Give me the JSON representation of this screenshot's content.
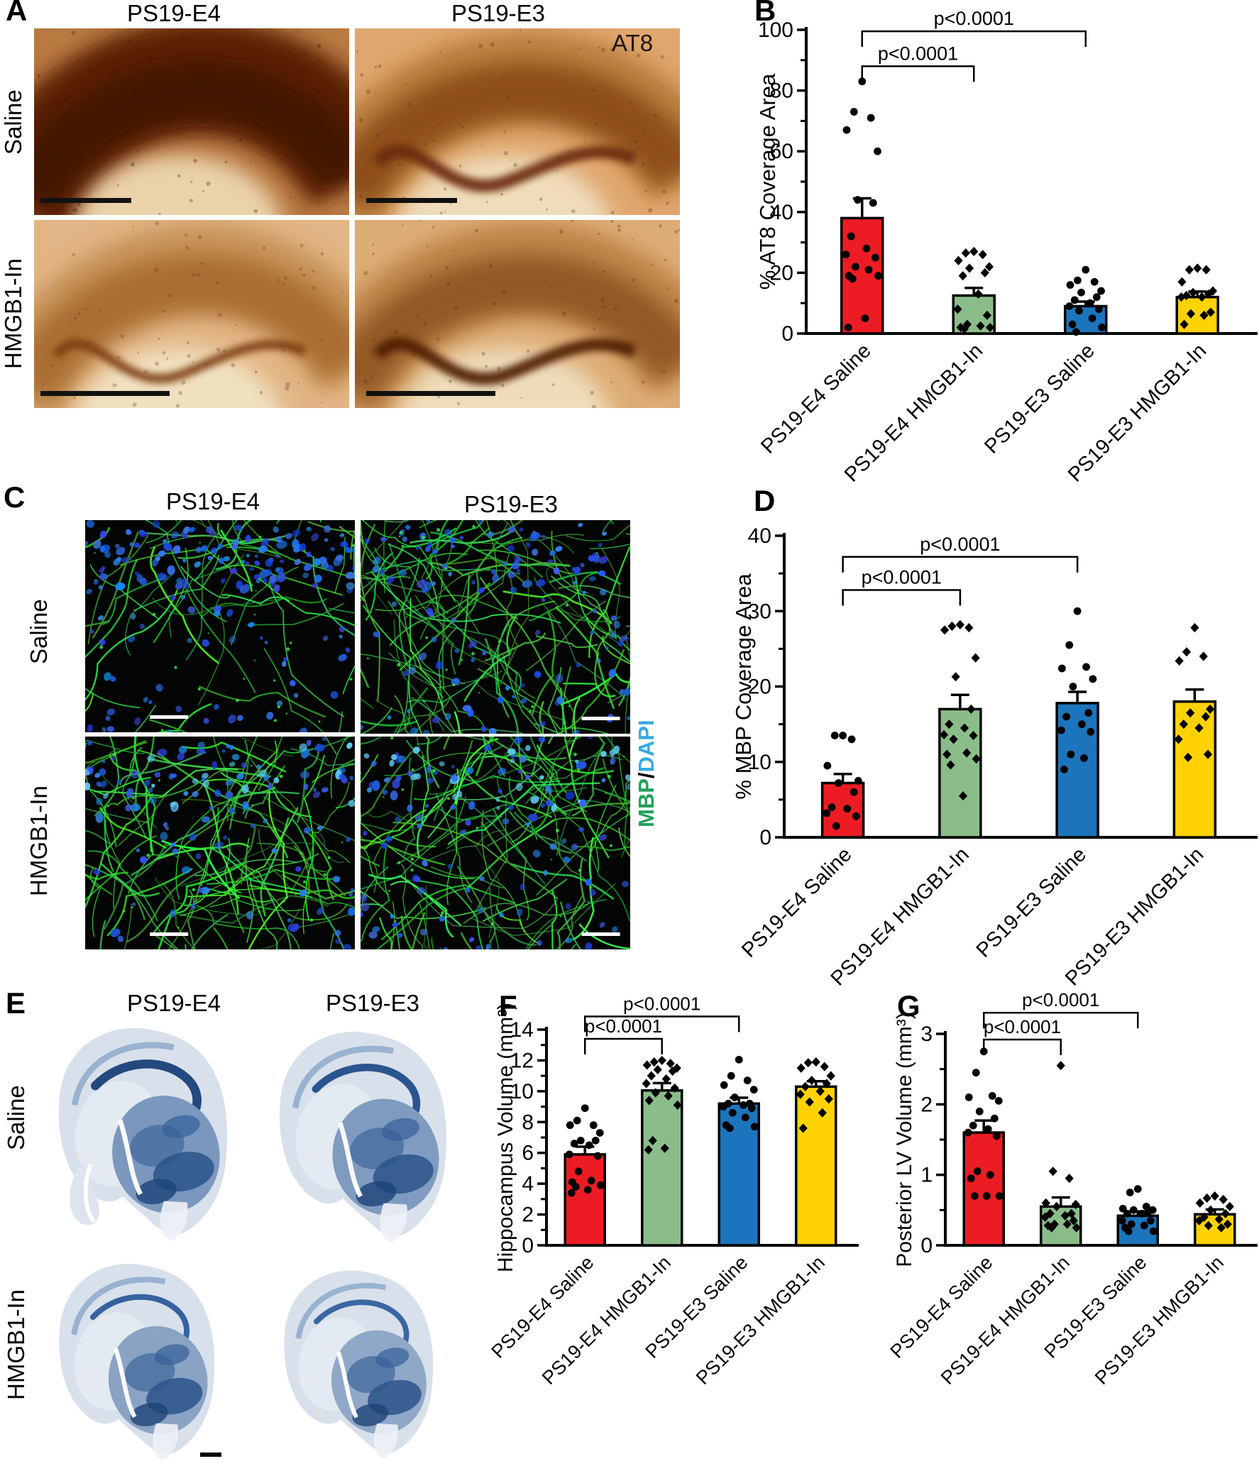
{
  "panel_a": {
    "letter": "A",
    "col_titles": [
      "PS19-E4",
      "PS19-E3"
    ],
    "row_titles": [
      "Saline",
      "HMGB1-In"
    ],
    "stain": "AT8"
  },
  "panel_c": {
    "letter": "C",
    "col_titles": [
      "PS19-E4",
      "PS19-E3"
    ],
    "row_titles": [
      "Saline",
      "HMGB1-In"
    ],
    "stain_mbp": "MBP",
    "stain_sep": "/",
    "stain_dapi": "DAPI"
  },
  "panel_e": {
    "letter": "E",
    "col_titles": [
      "PS19-E4",
      "PS19-E3"
    ],
    "row_titles": [
      "Saline",
      "HMGB1-In"
    ]
  },
  "colors": {
    "group_red": "#EC1C24",
    "group_green": "#8BBD8B",
    "group_blue": "#1C75BC",
    "group_yellow": "#FFD204",
    "mbp_green": "#1FA05A",
    "dapi_blue": "#36A9E1",
    "at8_text": "#221409"
  },
  "chart_data": [
    {
      "letter": "B",
      "type": "bar",
      "title": "",
      "ylabel": "% AT8 Coverage Area",
      "xlabel": "",
      "ylim": [
        0,
        100
      ],
      "yticks": [
        0,
        20,
        40,
        60,
        80,
        100
      ],
      "grid": false,
      "categories": [
        "PS19-E4 Saline",
        "PS19-E4 HMGB1-In",
        "PS19-E3 Saline",
        "PS19-E3 HMGB1-In"
      ],
      "bar_colors": [
        "#EC1C24",
        "#8BBD8B",
        "#1C75BC",
        "#FFD204"
      ],
      "markers": [
        "circle",
        "diamond",
        "circle",
        "diamond"
      ],
      "means": [
        38,
        12.5,
        9,
        12
      ],
      "errors": [
        6.5,
        2.5,
        1.5,
        1.8
      ],
      "points": [
        [
          83,
          73,
          71,
          67,
          60,
          44,
          43,
          32,
          28,
          26,
          25,
          22,
          21,
          19,
          19,
          18,
          5,
          2
        ],
        [
          27,
          26.5,
          26,
          24,
          22,
          21.5,
          20,
          19,
          13,
          8,
          6,
          3,
          2.5,
          2,
          2,
          1.5
        ],
        [
          21,
          17.5,
          17,
          16,
          14,
          13.5,
          12,
          11,
          10,
          9,
          8,
          7.5,
          5,
          3,
          2,
          0.5
        ],
        [
          21.5,
          21,
          21,
          17,
          14,
          13.5,
          13,
          12.5,
          12,
          12,
          7,
          6.5,
          6,
          3
        ]
      ],
      "significance": [
        {
          "from": 0,
          "to": 1,
          "y": 88,
          "label": "p<0.0001"
        },
        {
          "from": 0,
          "to": 2,
          "y": 99.5,
          "label": "p<0.0001"
        }
      ]
    },
    {
      "letter": "D",
      "type": "bar",
      "title": "",
      "ylabel": "% MBP Coverage Area",
      "xlabel": "",
      "ylim": [
        0,
        40
      ],
      "yticks": [
        0,
        10,
        20,
        30,
        40
      ],
      "grid": false,
      "categories": [
        "PS19-E4 Saline",
        "PS19-E4 HMGB1-In",
        "PS19-E3 Saline",
        "PS19-E3 HMGB1-In"
      ],
      "bar_colors": [
        "#EC1C24",
        "#8BBD8B",
        "#1C75BC",
        "#FFD204"
      ],
      "markers": [
        "circle",
        "diamond",
        "circle",
        "diamond"
      ],
      "means": [
        7.2,
        17,
        17.8,
        18
      ],
      "errors": [
        1.2,
        1.9,
        1.5,
        1.6
      ],
      "points": [
        [
          13.5,
          13.5,
          13,
          9.5,
          7.5,
          7.2,
          6,
          4,
          3.8,
          3.2,
          2.8,
          1.5
        ],
        [
          28.2,
          28,
          27.8,
          27.5,
          23.8,
          21.3,
          17,
          15,
          14.5,
          13.6,
          13.5,
          13,
          11.2,
          11,
          10.4,
          9.6,
          5.5
        ],
        [
          30,
          25.5,
          22.6,
          22.4,
          21,
          20,
          16.5,
          16,
          15,
          14.2,
          14,
          11,
          10.5,
          9
        ],
        [
          27.8,
          24.6,
          24,
          23.4,
          17,
          16.5,
          16,
          15,
          14.5,
          13,
          11,
          10.6
        ]
      ],
      "significance": [
        {
          "from": 0,
          "to": 1,
          "y": 32.8,
          "label": "p<0.0001"
        },
        {
          "from": 0,
          "to": 2,
          "y": 37.2,
          "label": "p<0.0001"
        }
      ]
    },
    {
      "letter": "F",
      "type": "bar",
      "title": "",
      "ylabel": "Hippocampus Volume (mm³)",
      "xlabel": "",
      "ylim": [
        0,
        14
      ],
      "yticks": [
        0,
        2,
        4,
        6,
        8,
        10,
        12,
        14
      ],
      "grid": false,
      "categories": [
        "PS19-E4 Saline",
        "PS19-E4 HMGB1-In",
        "PS19-E3 Saline",
        "PS19-E3 HMGB1-In"
      ],
      "bar_colors": [
        "#EC1C24",
        "#8BBD8B",
        "#1C75BC",
        "#FFD204"
      ],
      "markers": [
        "circle",
        "diamond",
        "circle",
        "diamond"
      ],
      "means": [
        5.9,
        10.05,
        9.2,
        10.3
      ],
      "errors": [
        0.5,
        0.48,
        0.38,
        0.35
      ],
      "points": [
        [
          8.9,
          8.1,
          7.8,
          7.8,
          7.3,
          6.8,
          6.8,
          6.6,
          6.5,
          5.9,
          5.8,
          4.8,
          4.2,
          4.1,
          3.9,
          3.8,
          3.6,
          3.4
        ],
        [
          12,
          11.9,
          11.8,
          11.7,
          11.5,
          11.4,
          11.3,
          11,
          10.8,
          10.5,
          10.2,
          9.9,
          9.7,
          9.4,
          9.1,
          6.8,
          6.3,
          6.2
        ],
        [
          12.05,
          11,
          10.7,
          10.4,
          10.1,
          9.6,
          9.2,
          9.2,
          9.1,
          9,
          8.9,
          8.6,
          8.3,
          7.8,
          7.7,
          7.6
        ],
        [
          11.9,
          11.85,
          11.6,
          11.5,
          11,
          10.7,
          10.5,
          10.3,
          10,
          9.8,
          9.5,
          9.3,
          8.6,
          7.6
        ]
      ],
      "significance": [
        {
          "from": 0,
          "to": 1,
          "y": 13.4,
          "label": "p<0.0001"
        },
        {
          "from": 0,
          "to": 2,
          "y": 14.85,
          "label": "p<0.0001"
        }
      ]
    },
    {
      "letter": "G",
      "type": "bar",
      "title": "",
      "ylabel": "Posterior LV Volume (mm³)",
      "xlabel": "",
      "ylim": [
        0,
        3
      ],
      "yticks": [
        0,
        1,
        2,
        3
      ],
      "grid": false,
      "categories": [
        "PS19-E4 Saline",
        "PS19-E4 HMGB1-In",
        "PS19-E3 Saline",
        "PS19-E3 HMGB1-In"
      ],
      "bar_colors": [
        "#EC1C24",
        "#8BBD8B",
        "#1C75BC",
        "#FFD204"
      ],
      "markers": [
        "circle",
        "diamond",
        "circle",
        "diamond"
      ],
      "means": [
        1.6,
        0.55,
        0.42,
        0.44
      ],
      "errors": [
        0.17,
        0.13,
        0.06,
        0.07
      ],
      "points": [
        [
          2.75,
          2.45,
          2.12,
          2.1,
          2.05,
          1.9,
          1.8,
          1.7,
          1.65,
          1.6,
          1.55,
          1.05,
          1,
          0.95,
          0.7,
          0.7,
          0.7
        ],
        [
          2.55,
          1.05,
          0.95,
          0.6,
          0.58,
          0.55,
          0.45,
          0.45,
          0.42,
          0.4,
          0.35,
          0.3,
          0.3,
          0.28,
          0.25,
          0.25
        ],
        [
          0.8,
          0.75,
          0.55,
          0.52,
          0.5,
          0.5,
          0.48,
          0.45,
          0.45,
          0.35,
          0.35,
          0.3,
          0.28,
          0.25,
          0.2,
          0.2
        ],
        [
          0.7,
          0.67,
          0.65,
          0.6,
          0.55,
          0.5,
          0.45,
          0.4,
          0.37,
          0.35,
          0.3,
          0.28,
          0.25
        ]
      ],
      "significance": [
        {
          "from": 0,
          "to": 1,
          "y": 2.92,
          "label": "p<0.0001"
        },
        {
          "from": 0,
          "to": 2,
          "y": 3.3,
          "label": "p<0.0001"
        }
      ]
    }
  ]
}
